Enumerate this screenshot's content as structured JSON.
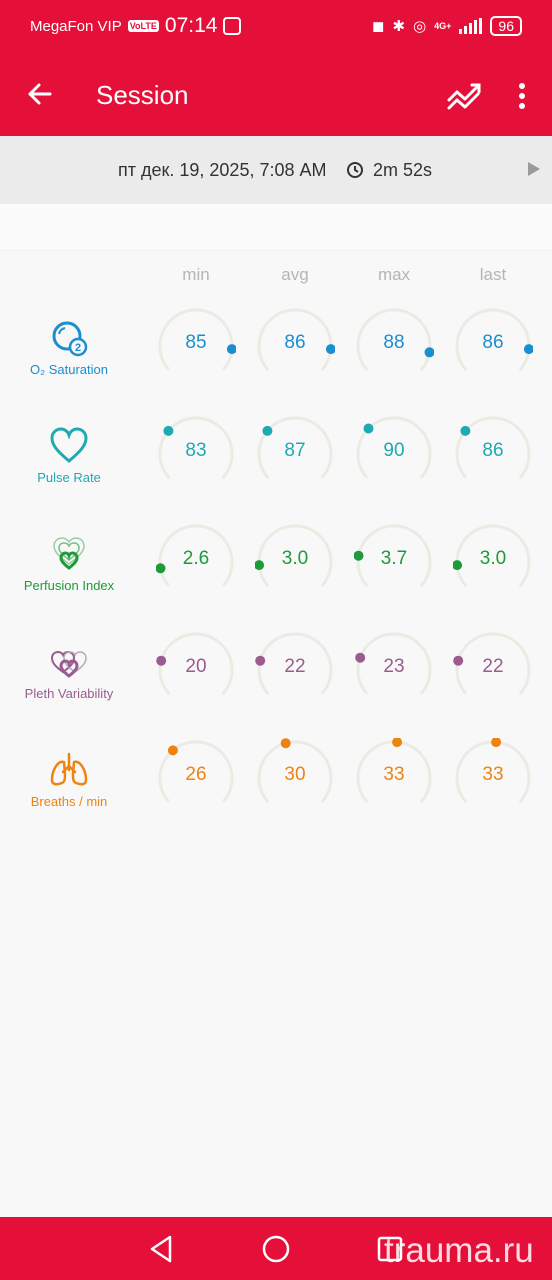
{
  "status_bar": {
    "carrier": "MegaFon VIP",
    "volte": "VoLTE",
    "time": "07:14",
    "network": "4G+",
    "battery": "96"
  },
  "app_bar": {
    "title": "Session"
  },
  "session": {
    "date": "пт дек. 19, 2025, 7:08 AM",
    "duration": "2m 52s"
  },
  "columns": [
    "min",
    "avg",
    "max",
    "last"
  ],
  "metrics": [
    {
      "label": "O₂ Saturation",
      "icon": "o2-icon",
      "color": "#1a8fd0",
      "values": [
        "85",
        "86",
        "88",
        "86"
      ]
    },
    {
      "label": "Pulse Rate",
      "icon": "heart-icon",
      "color": "#1fa9b1",
      "values": [
        "83",
        "87",
        "90",
        "86"
      ]
    },
    {
      "label": "Perfusion Index",
      "icon": "perfusion-hearts-icon",
      "color": "#1e9a3a",
      "values": [
        "2.6",
        "3.0",
        "3.7",
        "3.0"
      ]
    },
    {
      "label": "Pleth Variability",
      "icon": "pleth-hearts-icon",
      "color": "#9a5b8e",
      "values": [
        "20",
        "22",
        "23",
        "22"
      ]
    },
    {
      "label": "Breaths / min",
      "icon": "lungs-icon",
      "color": "#ee8410",
      "values": [
        "26",
        "30",
        "33",
        "33"
      ]
    }
  ],
  "colors": {
    "brand": "#e5103a",
    "gauge_track": "#ecebe3"
  },
  "watermark": "trauma.ru"
}
